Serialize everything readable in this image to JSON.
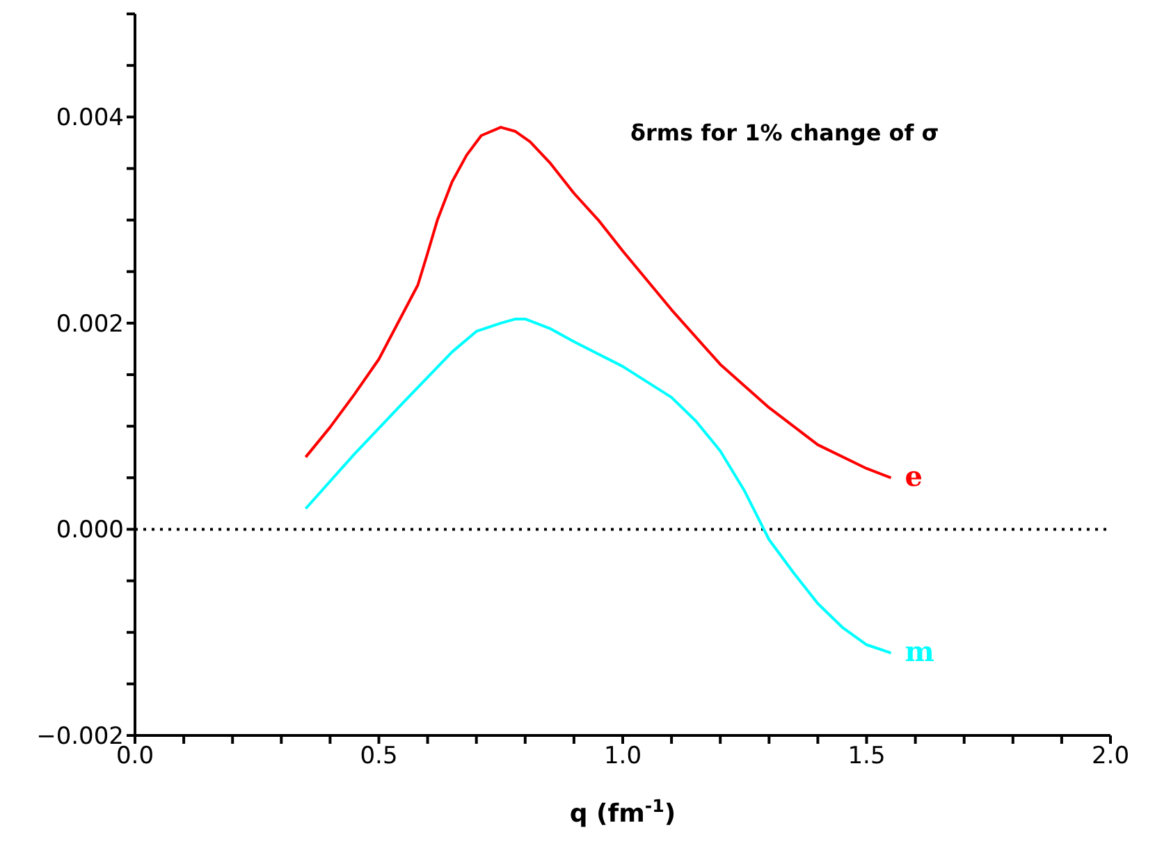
{
  "chart_data": {
    "type": "line",
    "xlabel": "q (fm$^{-1}$)",
    "annotations": [
      "δrms for 1% change of σ"
    ],
    "xlim": [
      0,
      2
    ],
    "ylim": [
      -0.002,
      0.005
    ],
    "xticks": [
      {
        "value": 0,
        "label": "0.0"
      },
      {
        "value": 0.1,
        "label": null
      },
      {
        "value": 0.2,
        "label": null
      },
      {
        "value": 0.3,
        "label": null
      },
      {
        "value": 0.4,
        "label": null
      },
      {
        "value": 0.5,
        "label": "0.5"
      },
      {
        "value": 0.6,
        "label": null
      },
      {
        "value": 0.7,
        "label": null
      },
      {
        "value": 0.8,
        "label": null
      },
      {
        "value": 0.9,
        "label": null
      },
      {
        "value": 1,
        "label": "1.0"
      },
      {
        "value": 1.1,
        "label": null
      },
      {
        "value": 1.2,
        "label": null
      },
      {
        "value": 1.3,
        "label": null
      },
      {
        "value": 1.4,
        "label": null
      },
      {
        "value": 1.5,
        "label": "1.5"
      },
      {
        "value": 1.6,
        "label": null
      },
      {
        "value": 1.7,
        "label": null
      },
      {
        "value": 1.8,
        "label": null
      },
      {
        "value": 1.9,
        "label": null
      },
      {
        "value": 2,
        "label": "2.0"
      }
    ],
    "yticks": [
      {
        "value": -0.002,
        "label": "−0.002"
      },
      {
        "value": -0.0015,
        "label": null
      },
      {
        "value": -0.001,
        "label": null
      },
      {
        "value": -0.0005,
        "label": null
      },
      {
        "value": 0,
        "label": "0.000"
      },
      {
        "value": 0.0005,
        "label": null
      },
      {
        "value": 0.001,
        "label": null
      },
      {
        "value": 0.0015,
        "label": null
      },
      {
        "value": 0.002,
        "label": "0.002"
      },
      {
        "value": 0.0025,
        "label": null
      },
      {
        "value": 0.003,
        "label": null
      },
      {
        "value": 0.0035,
        "label": null
      },
      {
        "value": 0.004,
        "label": "0.004"
      },
      {
        "value": 0.0045,
        "label": null
      },
      {
        "value": 0.005,
        "label": null
      }
    ],
    "grid": false,
    "legend": false,
    "marker": "none",
    "line_style": "solid",
    "ref_lines": [
      {
        "axis": "y",
        "value": 0,
        "label": null,
        "color": "#000000",
        "line_style": "dotted"
      }
    ],
    "series": [
      {
        "name": "e",
        "color": "#ff0000",
        "x": [
          0.35,
          0.4,
          0.45,
          0.5,
          0.55,
          0.58,
          0.6,
          0.62,
          0.65,
          0.68,
          0.71,
          0.75,
          0.78,
          0.81,
          0.85,
          0.9,
          0.95,
          1.0,
          1.1,
          1.2,
          1.3,
          1.4,
          1.5,
          1.55
        ],
        "values": [
          0.0007,
          0.00099,
          0.00131,
          0.00165,
          0.0021,
          0.00237,
          0.00268,
          0.003,
          0.00337,
          0.00363,
          0.00382,
          0.0039,
          0.00386,
          0.00376,
          0.00356,
          0.00326,
          0.003,
          0.0027,
          0.00213,
          0.0016,
          0.00118,
          0.00082,
          0.00059,
          0.0005
        ]
      },
      {
        "name": "m",
        "color": "#00ffff",
        "x": [
          0.35,
          0.45,
          0.55,
          0.65,
          0.7,
          0.75,
          0.78,
          0.8,
          0.85,
          0.9,
          1.0,
          1.1,
          1.15,
          1.2,
          1.25,
          1.3,
          1.35,
          1.4,
          1.45,
          1.5,
          1.55
        ],
        "values": [
          0.0002,
          0.00073,
          0.00123,
          0.00172,
          0.00192,
          0.002,
          0.00204,
          0.00204,
          0.00195,
          0.00182,
          0.00158,
          0.00128,
          0.00105,
          0.00076,
          0.00037,
          -0.0001,
          -0.00042,
          -0.00072,
          -0.00095,
          -0.00112,
          -0.0012
        ]
      }
    ]
  }
}
